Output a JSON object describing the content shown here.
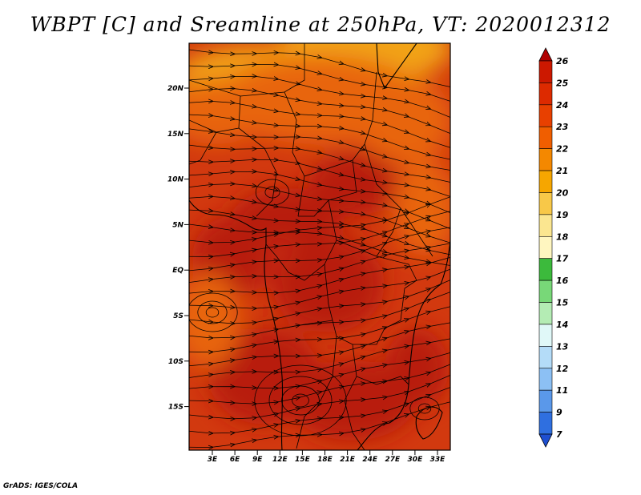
{
  "title": "WBPT [C] and Sreamline at 250hPa, VT: 2020012312",
  "credit": "GrADS: IGES/COLA",
  "map": {
    "lat_labels": [
      "20N",
      "15N",
      "10N",
      "5N",
      "EQ",
      "5S",
      "10S",
      "15S"
    ],
    "lon_labels": [
      "3E",
      "6E",
      "9E",
      "12E",
      "15E",
      "18E",
      "21E",
      "24E",
      "27E",
      "30E",
      "33E"
    ]
  },
  "colorbar": {
    "levels": [
      "26",
      "25",
      "24",
      "23",
      "22",
      "21",
      "20",
      "19",
      "18",
      "17",
      "16",
      "15",
      "14",
      "13",
      "12",
      "11",
      "9",
      "7"
    ],
    "colors": [
      "#b00000",
      "#cc1800",
      "#dd2a00",
      "#e84000",
      "#f05e00",
      "#f48800",
      "#f6a600",
      "#f8c848",
      "#fbe690",
      "#fff6c0",
      "#3cba3c",
      "#78d878",
      "#b4ecb4",
      "#e0f8f8",
      "#b4dcf8",
      "#8cc0f4",
      "#5a98ea",
      "#2f6fe0",
      "#1e4fd0"
    ]
  },
  "map_colors": {
    "base": "#d2390f",
    "warm": "#b81e08",
    "orange": "#e8650e",
    "yellow": "#f2a319"
  }
}
